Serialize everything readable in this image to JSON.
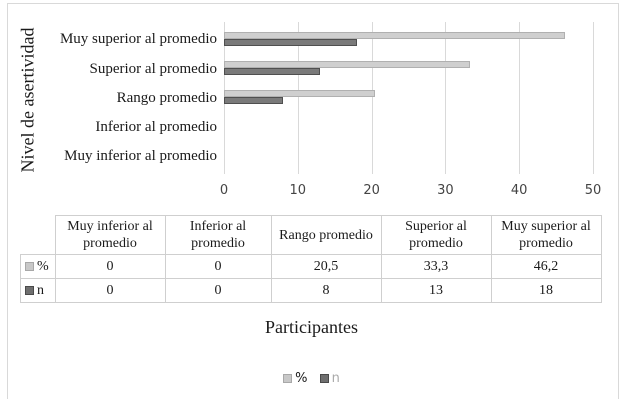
{
  "chart_data": {
    "type": "bar",
    "orientation": "horizontal",
    "title": "",
    "xlabel": "Participantes",
    "ylabel": "Nivel de asertividad",
    "categories": [
      "Muy inferior al promedio",
      "Inferior al promedio",
      "Rango promedio",
      "Superior al promedio",
      "Muy superior al promedio"
    ],
    "series": [
      {
        "name": "%",
        "color": "#cfcfcf",
        "values": [
          0,
          0,
          20.5,
          33.3,
          46.2
        ]
      },
      {
        "name": "n",
        "color": "#7a7a7a",
        "values": [
          0,
          0,
          8,
          13,
          18
        ]
      }
    ],
    "xlim": [
      0,
      50
    ],
    "xticks": [
      "0",
      "10",
      "20",
      "30",
      "40",
      "50"
    ],
    "grid": true,
    "legend_position": "bottom",
    "data_table": {
      "headers": [
        "Muy inferior al promedio",
        "Inferior al promedio",
        "Rango promedio",
        "Superior al promedio",
        "Muy superior al promedio"
      ],
      "rows": [
        {
          "label": "%",
          "values": [
            "0",
            "0",
            "20,5",
            "33,3",
            "46,2"
          ]
        },
        {
          "label": "n",
          "values": [
            "0",
            "0",
            "8",
            "13",
            "18"
          ]
        }
      ]
    }
  },
  "axis": {
    "ylabel": "Nivel de asertividad",
    "xlabel": "Participantes",
    "ticks": [
      "0",
      "10",
      "20",
      "30",
      "40",
      "50"
    ],
    "cats_top_to_bottom": [
      "Muy superior al promedio",
      "Superior al promedio",
      "Rango promedio",
      "Inferior al promedio",
      "Muy inferior al promedio"
    ]
  },
  "table": {
    "headers": [
      {
        "l1": "Muy inferior al",
        "l2": "promedio"
      },
      {
        "l1": "Inferior al",
        "l2": "promedio"
      },
      {
        "l1": "Rango promedio",
        "l2": ""
      },
      {
        "l1": "Superior al",
        "l2": "promedio"
      },
      {
        "l1": "Muy superior al",
        "l2": "promedio"
      }
    ],
    "row_pct": {
      "label": "%",
      "values": [
        "0",
        "0",
        "20,5",
        "33,3",
        "46,2"
      ]
    },
    "row_n": {
      "label": "n",
      "values": [
        "0",
        "0",
        "8",
        "13",
        "18"
      ]
    }
  },
  "legend": {
    "pct": "%",
    "n": "n"
  }
}
